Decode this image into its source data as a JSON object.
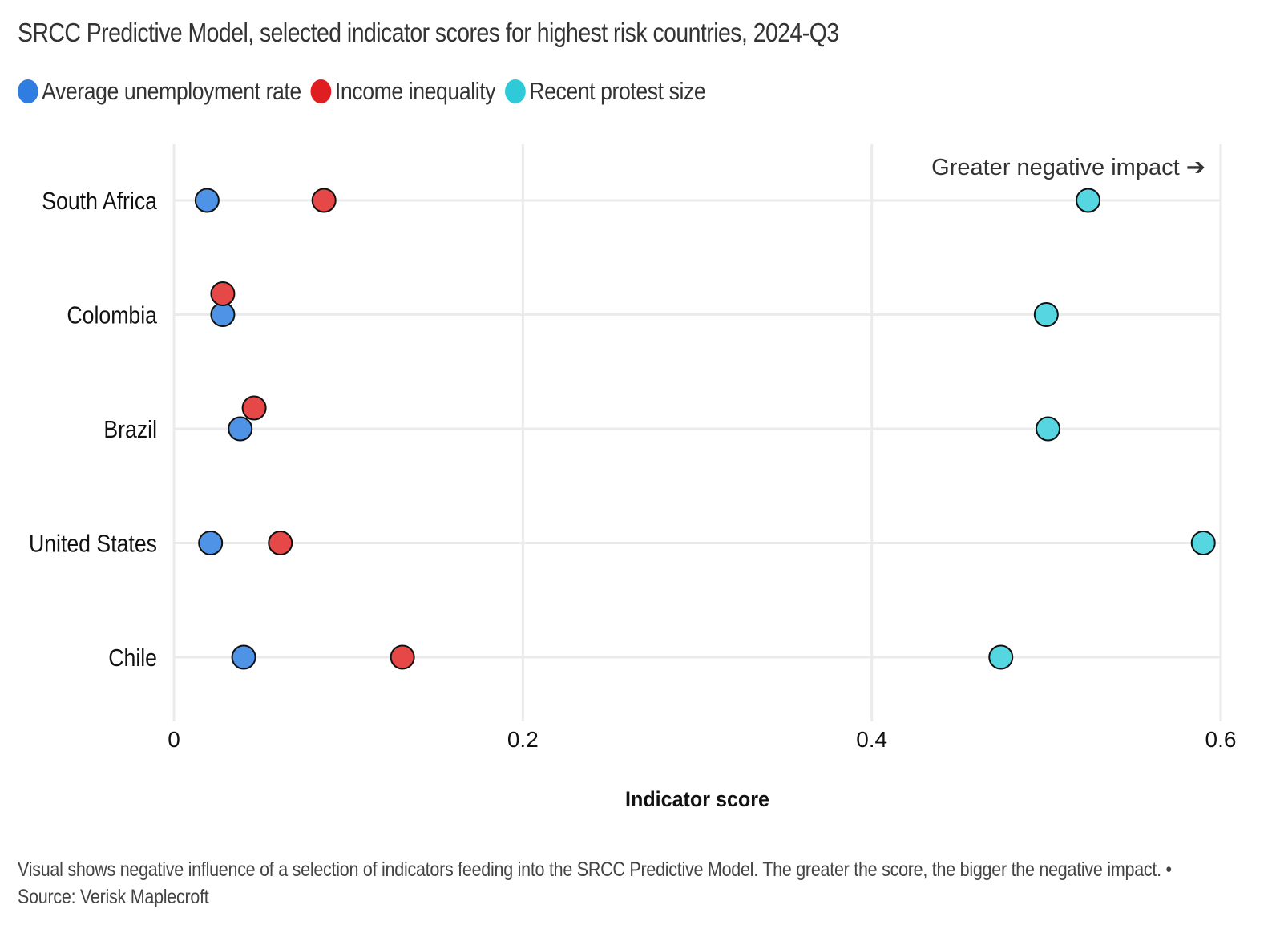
{
  "chart_data": {
    "type": "scatter",
    "subtype": "dot-plot",
    "title": "SRCC Predictive Model, selected indicator scores for highest risk countries, 2024-Q3",
    "xlabel": "Indicator score",
    "ylabel": "",
    "xlim": [
      0,
      0.6
    ],
    "xticks": [
      0,
      0.2,
      0.4,
      0.6
    ],
    "xtick_labels": [
      "0",
      "0.2",
      "0.4",
      "0.6"
    ],
    "grid": true,
    "legend_position": "top-left",
    "categories": [
      "South Africa",
      "Colombia",
      "Brazil",
      "United States",
      "Chile"
    ],
    "series": [
      {
        "name": "Average unemployment rate",
        "color": "#2f7de1",
        "marker_color": "#4f93e6",
        "values": [
          0.019,
          0.028,
          0.038,
          0.021,
          0.04
        ]
      },
      {
        "name": "Income inequality",
        "color": "#e01e22",
        "marker_color": "#e64747",
        "values": [
          0.086,
          0.028,
          0.046,
          0.061,
          0.131
        ],
        "dodged_up": [
          false,
          true,
          true,
          false,
          false
        ]
      },
      {
        "name": "Recent protest size",
        "color": "#2ecad8",
        "marker_color": "#56d6e0",
        "values": [
          0.524,
          0.5,
          0.501,
          0.59,
          0.474
        ]
      }
    ],
    "annotation": "Greater negative impact ➔"
  },
  "footer": {
    "note": "Visual shows negative influence of a selection of indicators feeding into the SRCC Predictive Model. The greater the score, the bigger the negative impact. • Source: Verisk Maplecroft"
  }
}
